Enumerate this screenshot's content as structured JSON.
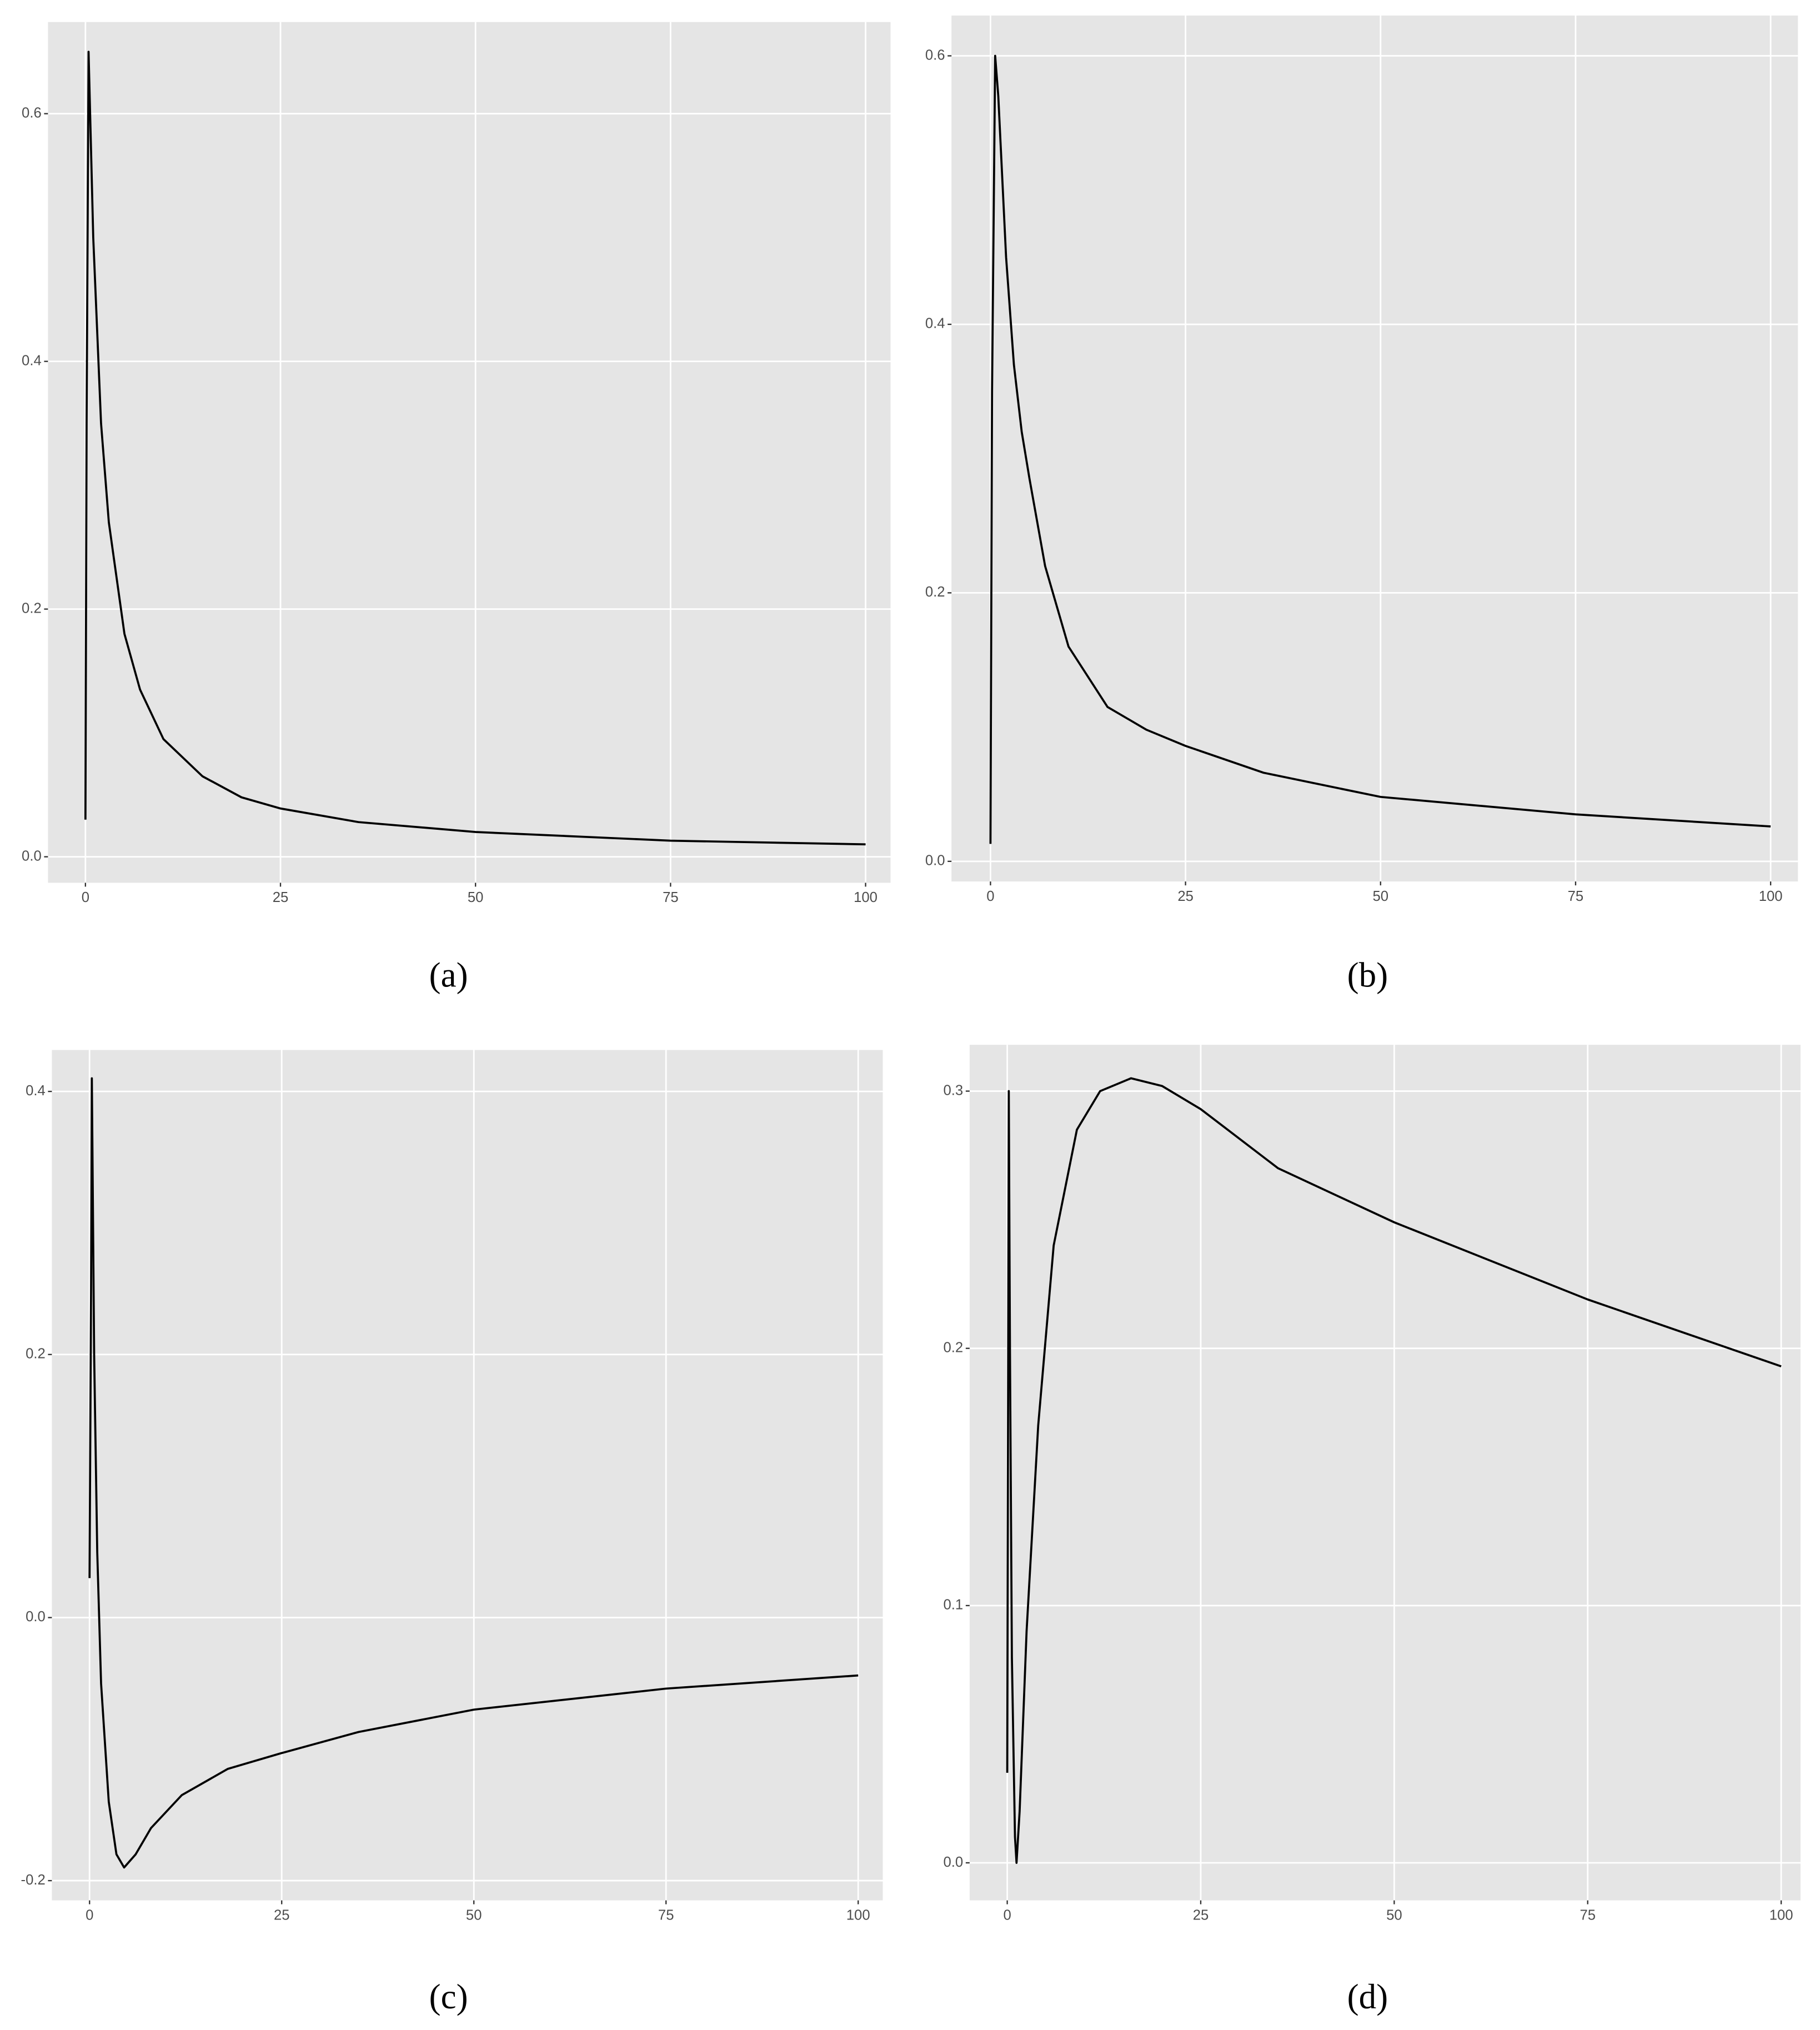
{
  "chart_data": [
    {
      "type": "line",
      "caption": "(a)",
      "color": "#000000",
      "grid": true,
      "x": [
        0,
        0.15,
        0.4,
        1,
        2,
        3,
        5,
        7,
        10,
        15,
        20,
        25,
        35,
        50,
        75,
        100
      ],
      "values": [
        0.03,
        0.35,
        0.65,
        0.5,
        0.35,
        0.27,
        0.18,
        0.135,
        0.095,
        0.065,
        0.048,
        0.039,
        0.028,
        0.02,
        0.013,
        0.01
      ],
      "xlim": [
        -4.8,
        103.2
      ],
      "ylim": [
        -0.021,
        0.674
      ],
      "xticks": [
        0,
        25,
        50,
        75,
        100
      ],
      "yticks": [
        {
          "value": 0,
          "label": "0.0"
        },
        0.2,
        0.4,
        0.6
      ]
    },
    {
      "type": "line",
      "caption": "(b)",
      "color": "#000000",
      "grid": true,
      "x": [
        0,
        0.2,
        0.6,
        1,
        2,
        3,
        4,
        5,
        7,
        10,
        15,
        20,
        25,
        35,
        50,
        75,
        100
      ],
      "values": [
        0.013,
        0.35,
        0.6,
        0.57,
        0.45,
        0.37,
        0.32,
        0.285,
        0.22,
        0.16,
        0.115,
        0.098,
        0.086,
        0.066,
        0.048,
        0.035,
        0.026
      ],
      "xlim": [
        -5,
        103.5
      ],
      "ylim": [
        -0.015,
        0.63
      ],
      "xticks": [
        0,
        25,
        50,
        75,
        100
      ],
      "yticks": [
        {
          "value": 0,
          "label": "0.0"
        },
        0.2,
        0.4,
        0.6
      ]
    },
    {
      "type": "line",
      "caption": "(c)",
      "color": "#000000",
      "grid": true,
      "x": [
        0,
        0.2,
        0.3,
        0.6,
        1,
        1.5,
        2.5,
        3.5,
        4.5,
        6,
        8,
        12,
        18,
        25,
        35,
        50,
        75,
        100
      ],
      "values": [
        0.03,
        0.25,
        0.41,
        0.2,
        0.05,
        -0.05,
        -0.14,
        -0.18,
        -0.19,
        -0.18,
        -0.16,
        -0.135,
        -0.115,
        -0.103,
        -0.087,
        -0.07,
        -0.054,
        -0.044
      ],
      "xlim": [
        -4.9,
        103.2
      ],
      "ylim": [
        -0.215,
        0.4315
      ],
      "xticks": [
        0,
        25,
        50,
        75,
        100
      ],
      "yticks": [
        -0.2,
        {
          "value": 0,
          "label": "0.0"
        },
        0.2,
        0.4
      ]
    },
    {
      "type": "line",
      "caption": "(d)",
      "color": "#000000",
      "grid": true,
      "x": [
        0,
        0.2,
        0.35,
        0.6,
        1,
        1.2,
        1.6,
        2.5,
        4,
        6,
        9,
        12,
        16,
        20,
        25,
        35,
        50,
        75,
        100
      ],
      "values": [
        0.035,
        0.3,
        0.2,
        0.08,
        0.01,
        0,
        0.02,
        0.09,
        0.17,
        0.24,
        0.285,
        0.3,
        0.305,
        0.302,
        0.293,
        0.27,
        0.249,
        0.219,
        0.193
      ],
      "xlim": [
        -4.86,
        102.5
      ],
      "ylim": [
        -0.0146,
        0.318
      ],
      "xticks": [
        0,
        25,
        50,
        75,
        100
      ],
      "yticks": [
        {
          "value": 0,
          "label": "0.0"
        },
        0.1,
        0.2,
        0.3
      ]
    }
  ]
}
